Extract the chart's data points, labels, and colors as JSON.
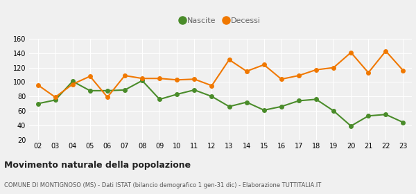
{
  "years": [
    "02",
    "03",
    "04",
    "05",
    "06",
    "07",
    "08",
    "09",
    "10",
    "11",
    "12",
    "13",
    "14",
    "15",
    "16",
    "17",
    "18",
    "19",
    "20",
    "21",
    "22",
    "23"
  ],
  "nascite": [
    70,
    75,
    101,
    88,
    88,
    89,
    102,
    76,
    83,
    89,
    80,
    66,
    72,
    61,
    66,
    74,
    76,
    60,
    39,
    53,
    55,
    44
  ],
  "decessi": [
    96,
    79,
    97,
    108,
    79,
    109,
    105,
    105,
    103,
    104,
    95,
    131,
    115,
    124,
    104,
    109,
    117,
    120,
    141,
    113,
    143,
    116
  ],
  "nascite_color": "#4a8c2a",
  "decessi_color": "#f07800",
  "bg_color": "#f0f0f0",
  "plot_bg_color": "#f0f0f0",
  "grid_color": "#ffffff",
  "ylim": [
    20,
    160
  ],
  "yticks": [
    20,
    40,
    60,
    80,
    100,
    120,
    140,
    160
  ],
  "title": "Movimento naturale della popolazione",
  "subtitle": "COMUNE DI MONTIGNOSO (MS) - Dati ISTAT (bilancio demografico 1 gen-31 dic) - Elaborazione TUTTITALIA.IT",
  "legend_nascite": "Nascite",
  "legend_decessi": "Decessi",
  "marker_size": 4,
  "line_width": 1.5,
  "title_fontsize": 9,
  "subtitle_fontsize": 6,
  "legend_fontsize": 8,
  "tick_fontsize": 7
}
